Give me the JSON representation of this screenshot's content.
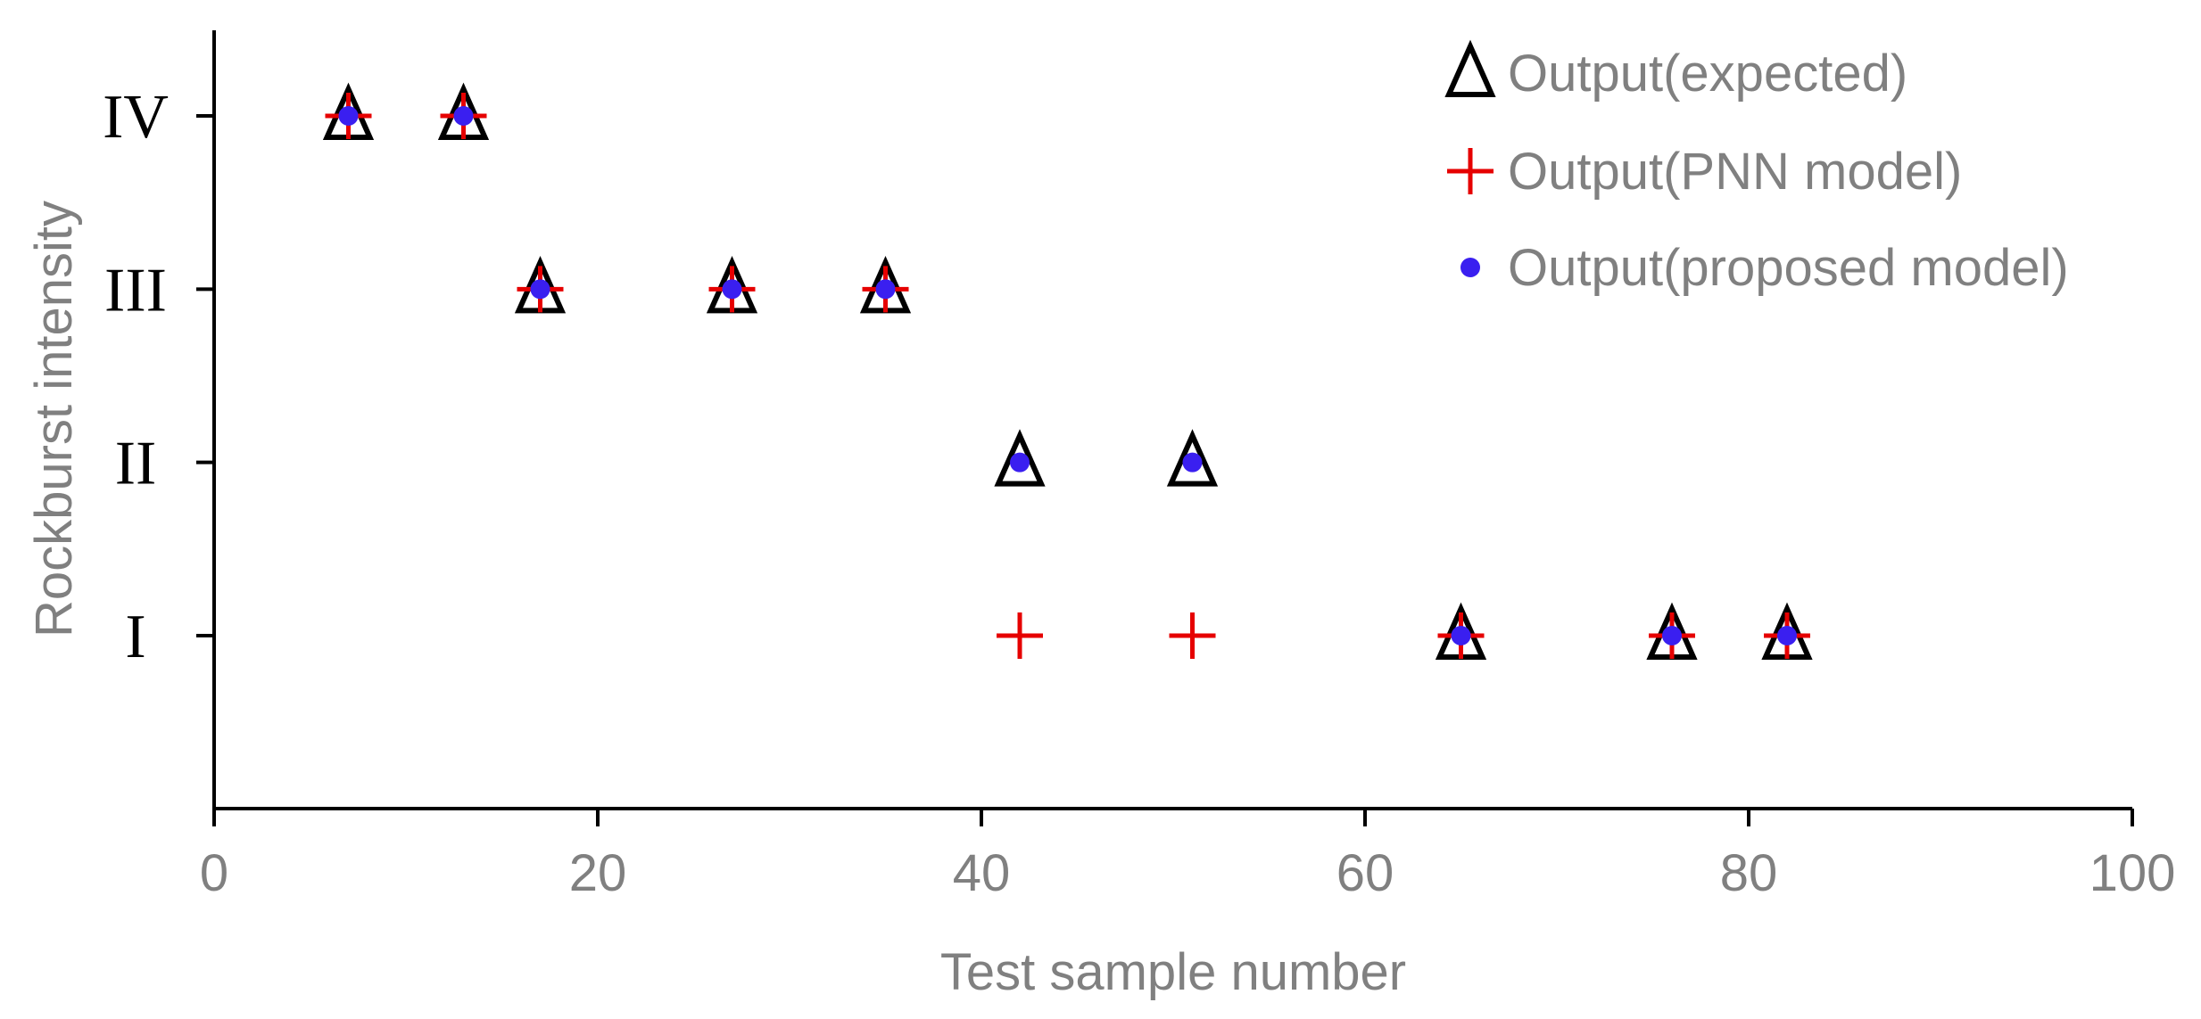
{
  "chart_data": {
    "type": "scatter",
    "title": "",
    "xlabel": "Test sample number",
    "ylabel": "Rockburst intensity",
    "xlim": [
      0,
      100
    ],
    "ylim": [
      0,
      4
    ],
    "x_ticks": [
      0,
      20,
      40,
      60,
      80,
      100
    ],
    "x_tick_labels": [
      "0",
      "20",
      "40",
      "60",
      "80",
      "100"
    ],
    "y_ticks": [
      1,
      2,
      3,
      4
    ],
    "y_tick_labels": [
      "I",
      "II",
      "III",
      "IV"
    ],
    "grid": false,
    "legend_position": "top-right",
    "series": [
      {
        "name": "Output(expected)",
        "marker": "triangle",
        "color": "#000000",
        "points": [
          {
            "x": 7,
            "y": 4
          },
          {
            "x": 13,
            "y": 4
          },
          {
            "x": 17,
            "y": 3
          },
          {
            "x": 27,
            "y": 3
          },
          {
            "x": 35,
            "y": 3
          },
          {
            "x": 42,
            "y": 2
          },
          {
            "x": 51,
            "y": 2
          },
          {
            "x": 65,
            "y": 1
          },
          {
            "x": 76,
            "y": 1
          },
          {
            "x": 82,
            "y": 1
          }
        ]
      },
      {
        "name": "Output(PNN model)",
        "marker": "plus",
        "color": "#e60000",
        "points": [
          {
            "x": 7,
            "y": 4
          },
          {
            "x": 13,
            "y": 4
          },
          {
            "x": 17,
            "y": 3
          },
          {
            "x": 27,
            "y": 3
          },
          {
            "x": 35,
            "y": 3
          },
          {
            "x": 42,
            "y": 1
          },
          {
            "x": 51,
            "y": 1
          },
          {
            "x": 65,
            "y": 1
          },
          {
            "x": 76,
            "y": 1
          },
          {
            "x": 82,
            "y": 1
          }
        ]
      },
      {
        "name": "Output(proposed model)",
        "marker": "dot",
        "color": "#3a1ff0",
        "points": [
          {
            "x": 7,
            "y": 4
          },
          {
            "x": 13,
            "y": 4
          },
          {
            "x": 17,
            "y": 3
          },
          {
            "x": 27,
            "y": 3
          },
          {
            "x": 35,
            "y": 3
          },
          {
            "x": 42,
            "y": 2
          },
          {
            "x": 51,
            "y": 2
          },
          {
            "x": 65,
            "y": 1
          },
          {
            "x": 76,
            "y": 1
          },
          {
            "x": 82,
            "y": 1
          }
        ]
      }
    ]
  }
}
